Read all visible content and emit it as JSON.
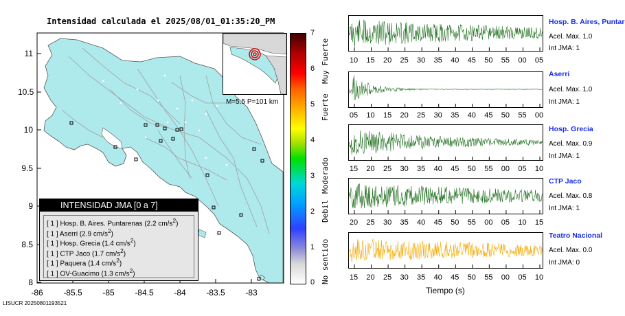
{
  "map": {
    "title": "Intensidad calculada el 2025/08/01_01:35:20_PM",
    "y_ticks": [
      "11",
      "10.5",
      "10",
      "9.5",
      "9",
      "8.5",
      "8"
    ],
    "x_ticks": [
      "-86",
      "-85.5",
      "-85",
      "-84.5",
      "-84",
      "-83.5",
      "-83"
    ],
    "footer_id": "LISUCR 20250801193521",
    "inset_label": "M=5.5 P=101 km",
    "colors": {
      "land": "#aee9ec",
      "sea": "#ffffff",
      "roads": "#a0a0a0",
      "legend_bg": "#e6e6e6",
      "legend_title_bg": "#000000"
    }
  },
  "legend": {
    "title": "INTENSIDAD JMA [0 a 7]",
    "items": [
      {
        "level": "[ 1 ]",
        "name": "Hosp. B. Aires. Puntarenas",
        "value": "(2.2 cm/s",
        "sup": "2",
        "close": ")"
      },
      {
        "level": "[ 1 ]",
        "name": "Aserri",
        "value": "(2.9 cm/s",
        "sup": "2",
        "close": ")"
      },
      {
        "level": "[ 1 ]",
        "name": "Hosp. Grecia",
        "value": "(1.4 cm/s",
        "sup": "2",
        "close": ")"
      },
      {
        "level": "[ 1 ]",
        "name": "CTP Jaco",
        "value": "(1.7 cm/s",
        "sup": "2",
        "close": ")"
      },
      {
        "level": "[ 1 ]",
        "name": "Paquera",
        "value": "(1.4 cm/s",
        "sup": "2",
        "close": ")"
      },
      {
        "level": "[ 1 ]",
        "name": "OV-Guacimo",
        "value": "(1.3 cm/s",
        "sup": "2",
        "close": ")"
      }
    ]
  },
  "colorbar": {
    "ticks": [
      "7",
      "6",
      "5",
      "4",
      "3",
      "2",
      "1",
      "0"
    ],
    "categories": [
      "Muy Fuerte",
      "Fuerte",
      "Moderado",
      "Debil",
      "No sentido"
    ]
  },
  "waveforms": [
    {
      "station": "Hosp. B. Aires, Puntare",
      "acel": "Acel. Max. 1.0",
      "jma": "Int JMA: 1",
      "color": "#1e6e1e",
      "ticks": [
        "10",
        "15",
        "20",
        "25",
        "30",
        "35",
        "40",
        "45",
        "50",
        "55",
        "00",
        "05"
      ]
    },
    {
      "station": "Aserri",
      "acel": "Acel. Max. 1.0",
      "jma": "Int JMA: 1",
      "color": "#1e6e1e",
      "ticks": [
        "05",
        "10",
        "15",
        "20",
        "25",
        "30",
        "35",
        "40",
        "45",
        "50",
        "55",
        "00"
      ]
    },
    {
      "station": "Hosp. Grecia",
      "acel": "Acel. Max. 0.9",
      "jma": "Int JMA: 1",
      "color": "#1e6e1e",
      "ticks": [
        "15",
        "20",
        "25",
        "30",
        "35",
        "40",
        "45",
        "50",
        "55",
        "00",
        "05",
        "10"
      ]
    },
    {
      "station": "CTP Jaco",
      "acel": "Acel. Max. 0.8",
      "jma": "Int JMA: 1",
      "color": "#1e6e1e",
      "ticks": [
        "20",
        "25",
        "30",
        "35",
        "40",
        "45",
        "50",
        "55",
        "00",
        "05",
        "10",
        "15"
      ]
    },
    {
      "station": "Teatro Nacional",
      "acel": "Acel. Max. 0.0",
      "jma": "Int JMA: 0",
      "color": "#f2a900",
      "ticks": [
        "15",
        "20",
        "25",
        "30",
        "35",
        "40",
        "45",
        "50",
        "55",
        "00",
        "05",
        "10"
      ]
    }
  ],
  "time_axis_label": "Tiempo (s)"
}
